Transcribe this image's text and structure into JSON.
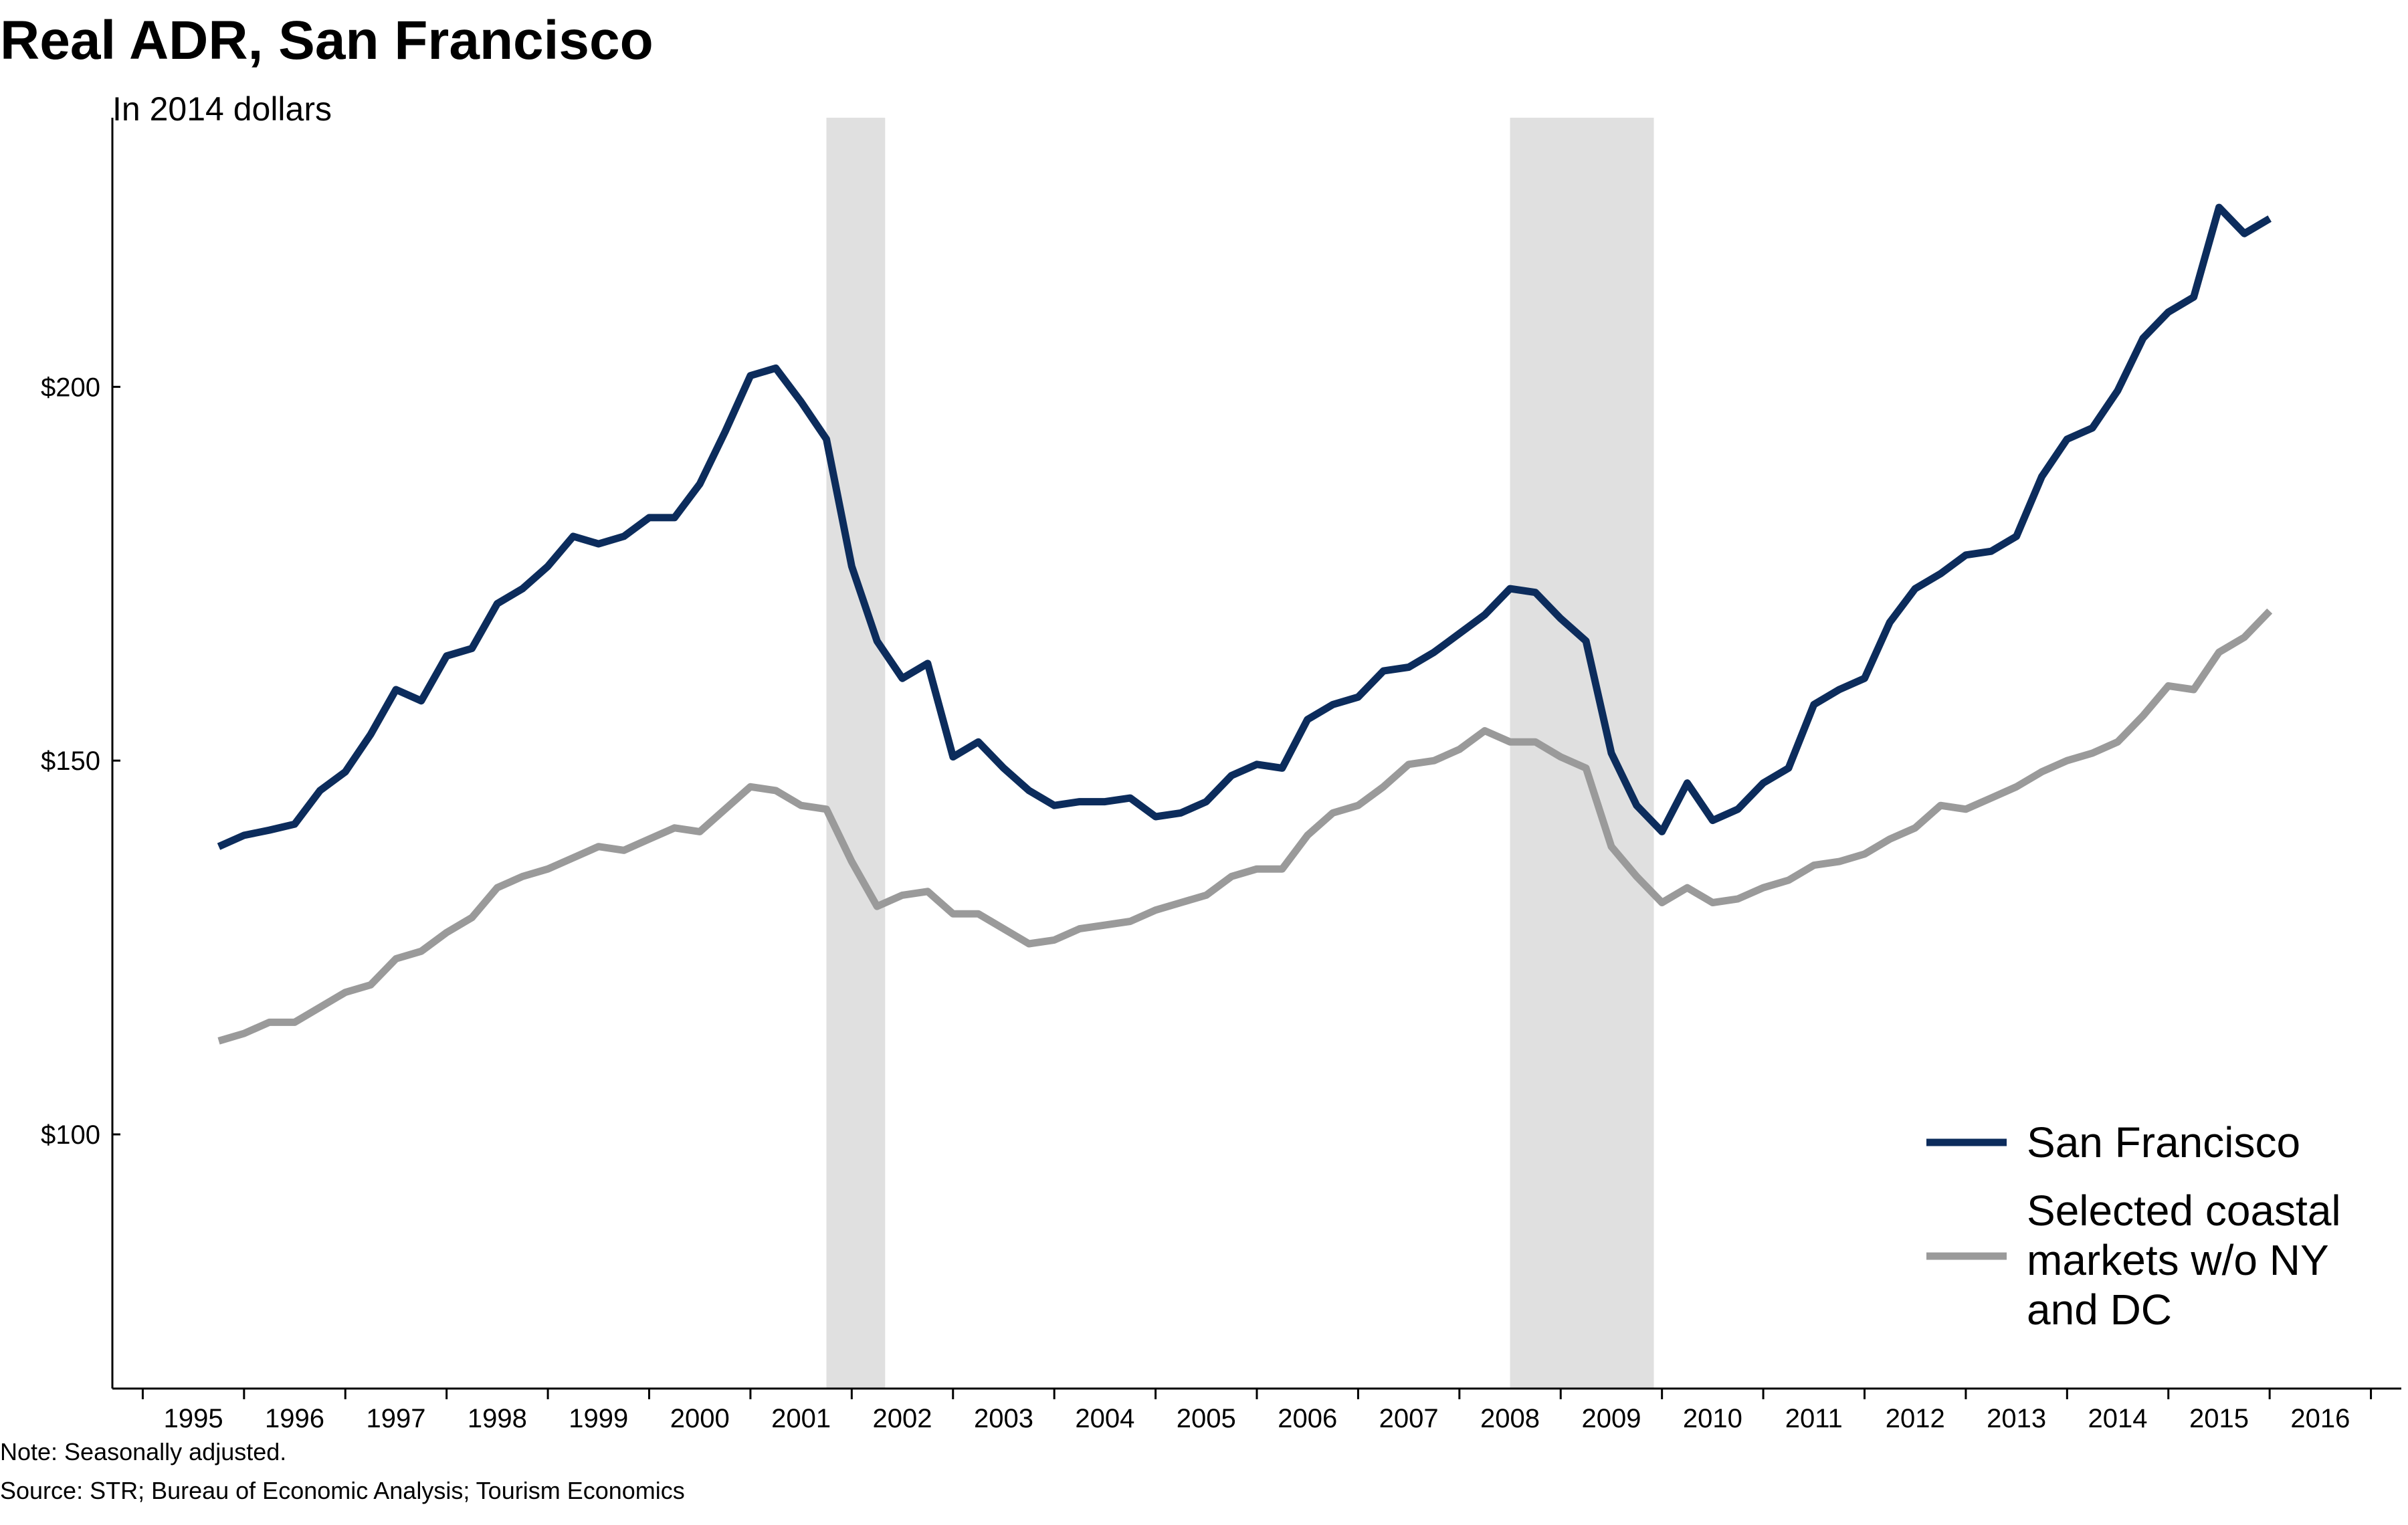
{
  "title": "Real ADR, San Francisco",
  "subtitle": "In 2014 dollars",
  "note": "Note: Seasonally adjusted.",
  "source": "Source: STR; Bureau of Economic Analysis; Tourism Economics",
  "chart_data": {
    "type": "line",
    "x_ticks": [
      "1995",
      "1996",
      "1997",
      "1998",
      "1999",
      "2000",
      "2001",
      "2002",
      "2003",
      "2004",
      "2005",
      "2006",
      "2007",
      "2008",
      "2009",
      "2010",
      "2011",
      "2012",
      "2013",
      "2014",
      "2015",
      "2016"
    ],
    "y_ticks": [
      {
        "value": 100,
        "label": "$100"
      },
      {
        "value": 150,
        "label": "$150"
      },
      {
        "value": 200,
        "label": "$200"
      }
    ],
    "xlim": [
      1994.2,
      2016.8
    ],
    "ylim": [
      66,
      236
    ],
    "recessions": [
      [
        2001.25,
        2001.83
      ],
      [
        2008.0,
        2009.42
      ]
    ],
    "legend_position": "bottom-right",
    "x_start": 1995.25,
    "x_step": 0.25,
    "series": [
      {
        "name": "San Francisco",
        "color": "#0c2c5c",
        "legend_lines": [
          "San Francisco"
        ],
        "values": [
          138.5,
          140,
          140.7,
          141.5,
          146,
          148.5,
          153.5,
          159.5,
          158,
          164,
          165,
          171,
          173,
          176,
          180,
          179,
          180,
          182.5,
          182.5,
          187,
          194,
          201.5,
          202.5,
          198,
          193,
          176,
          166,
          161,
          163,
          150.5,
          152.5,
          149,
          146,
          144,
          144.5,
          144.5,
          145,
          142.5,
          143,
          144.5,
          148,
          149.5,
          149,
          155.5,
          157.5,
          158.5,
          162,
          162.5,
          164.5,
          167,
          169.5,
          173,
          172.5,
          169,
          166,
          151,
          144,
          140.5,
          147,
          142,
          143.5,
          147,
          149,
          157.5,
          159.5,
          161,
          168.5,
          173,
          175,
          177.5,
          178,
          180,
          188,
          193,
          194.5,
          199.5,
          206.5,
          210,
          212,
          224,
          220.5,
          222.5
        ]
      },
      {
        "name": "Selected coastal markets w/o NY and DC",
        "color": "#9a9a9a",
        "legend_lines": [
          "Selected coastal",
          "markets w/o NY",
          "and DC"
        ],
        "values": [
          112.5,
          113.5,
          115,
          115,
          117,
          119,
          120,
          123.5,
          124.5,
          127,
          129,
          133,
          134.5,
          135.5,
          137,
          138.5,
          138,
          139.5,
          141,
          140.5,
          143.5,
          146.5,
          146,
          144,
          143.5,
          136.5,
          130.5,
          132,
          132.5,
          129.5,
          129.5,
          127.5,
          125.5,
          126,
          127.5,
          128,
          128.5,
          130,
          131,
          132,
          134.5,
          135.5,
          135.5,
          140,
          143,
          144,
          146.5,
          149.5,
          150,
          151.5,
          154,
          152.5,
          152.5,
          150.5,
          149,
          138.5,
          134.5,
          131,
          133,
          131,
          131.5,
          133,
          134,
          136,
          136.5,
          137.5,
          139.5,
          141,
          144,
          143.5,
          145,
          146.5,
          148.5,
          150,
          151,
          152.5,
          156,
          160,
          159.5,
          164.5,
          166.5,
          170
        ]
      }
    ]
  }
}
